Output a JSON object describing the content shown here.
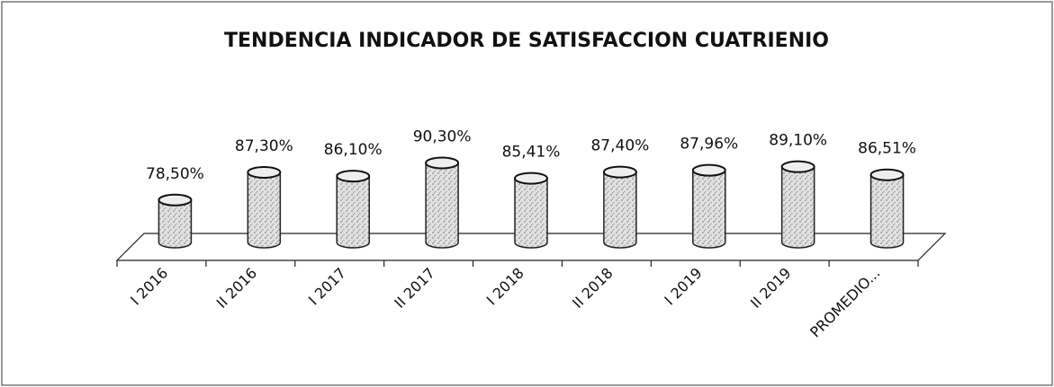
{
  "chart_data": {
    "type": "bar3d",
    "title": "TENDENCIA INDICADOR DE SATISFACCION CUATRIENIO",
    "categories": [
      "I 2016",
      "II 2016",
      "I 2017",
      "II 2017",
      "I 2018",
      "II 2018",
      "I 2019",
      "II 2019",
      "PROMEDIO..."
    ],
    "values": [
      78.5,
      87.3,
      86.1,
      90.3,
      85.41,
      87.4,
      87.96,
      89.1,
      86.51
    ],
    "value_labels": [
      "78,50%",
      "87,30%",
      "86,10%",
      "90,30%",
      "85,41%",
      "87,40%",
      "87,96%",
      "89,10%",
      "86,51%"
    ],
    "color": "#d4d4d4",
    "ylim": [
      65,
      95
    ]
  }
}
